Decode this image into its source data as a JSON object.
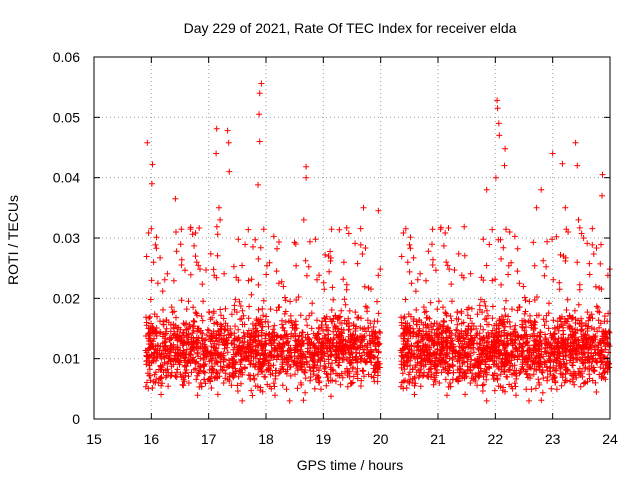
{
  "chart_data": {
    "type": "scatter",
    "title": "Day 229 of 2021, Rate Of TEC Index for receiver elda",
    "xlabel": "GPS time / hours",
    "ylabel": "ROTI / TECUs",
    "xlim": [
      15,
      24
    ],
    "ylim": [
      0,
      0.06
    ],
    "x_ticks": [
      "15",
      "16",
      "17",
      "18",
      "19",
      "20",
      "21",
      "22",
      "23",
      "24"
    ],
    "y_ticks": [
      "0",
      "0.01",
      "0.02",
      "0.03",
      "0.04",
      "0.05",
      "0.06"
    ],
    "grid": true,
    "marker": "plus",
    "series_color": "#ff0000",
    "data_gap_hours": [
      20.0,
      20.35
    ],
    "notable_points": [
      {
        "x": 15.93,
        "y": 0.0458
      },
      {
        "x": 16.02,
        "y": 0.0422
      },
      {
        "x": 16.01,
        "y": 0.039
      },
      {
        "x": 16.42,
        "y": 0.0365
      },
      {
        "x": 16.43,
        "y": 0.031
      },
      {
        "x": 16.77,
        "y": 0.027
      },
      {
        "x": 17.14,
        "y": 0.0481
      },
      {
        "x": 17.13,
        "y": 0.044
      },
      {
        "x": 17.33,
        "y": 0.0478
      },
      {
        "x": 17.35,
        "y": 0.0458
      },
      {
        "x": 17.36,
        "y": 0.041
      },
      {
        "x": 17.18,
        "y": 0.035
      },
      {
        "x": 17.2,
        "y": 0.033
      },
      {
        "x": 17.92,
        "y": 0.0556
      },
      {
        "x": 17.89,
        "y": 0.054
      },
      {
        "x": 17.88,
        "y": 0.0505
      },
      {
        "x": 17.89,
        "y": 0.046
      },
      {
        "x": 17.86,
        "y": 0.0388
      },
      {
        "x": 18.7,
        "y": 0.0418
      },
      {
        "x": 18.7,
        "y": 0.04
      },
      {
        "x": 18.66,
        "y": 0.033
      },
      {
        "x": 18.52,
        "y": 0.029
      },
      {
        "x": 19.7,
        "y": 0.035
      },
      {
        "x": 19.96,
        "y": 0.0345
      },
      {
        "x": 21.85,
        "y": 0.038
      },
      {
        "x": 22.03,
        "y": 0.0528
      },
      {
        "x": 22.04,
        "y": 0.0515
      },
      {
        "x": 22.06,
        "y": 0.049
      },
      {
        "x": 22.07,
        "y": 0.047
      },
      {
        "x": 22.17,
        "y": 0.0448
      },
      {
        "x": 22.16,
        "y": 0.042
      },
      {
        "x": 22.01,
        "y": 0.04
      },
      {
        "x": 22.25,
        "y": 0.031
      },
      {
        "x": 22.8,
        "y": 0.038
      },
      {
        "x": 22.72,
        "y": 0.035
      },
      {
        "x": 23.0,
        "y": 0.044
      },
      {
        "x": 23.17,
        "y": 0.0423
      },
      {
        "x": 23.22,
        "y": 0.035
      },
      {
        "x": 23.27,
        "y": 0.031
      },
      {
        "x": 23.4,
        "y": 0.0458
      },
      {
        "x": 23.43,
        "y": 0.042
      },
      {
        "x": 23.45,
        "y": 0.033
      },
      {
        "x": 23.54,
        "y": 0.03
      },
      {
        "x": 23.87,
        "y": 0.0405
      },
      {
        "x": 23.86,
        "y": 0.037
      }
    ],
    "bulk_distribution": {
      "segments": [
        {
          "x_range": [
            15.9,
            20.0
          ],
          "y_center": 0.0115,
          "y_spread": 0.006
        },
        {
          "x_range": [
            20.35,
            24.0
          ],
          "y_center": 0.0115,
          "y_spread": 0.006
        }
      ],
      "count": 3400,
      "y_min": 0.003,
      "y_max": 0.032
    }
  }
}
